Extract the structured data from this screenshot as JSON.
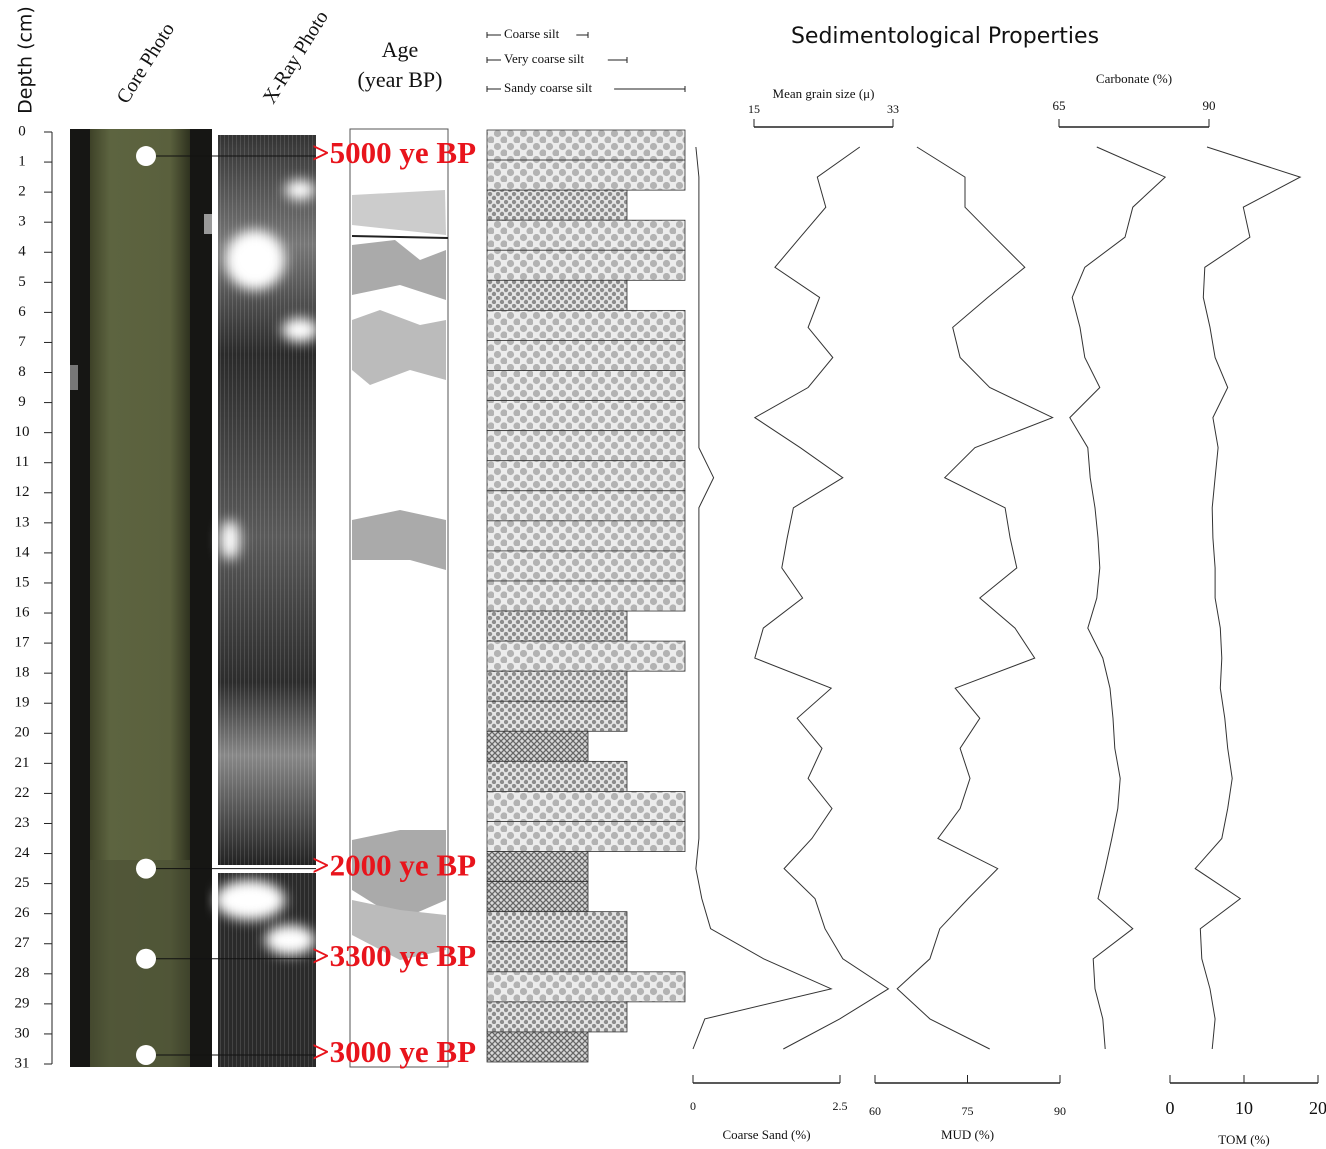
{
  "title": "Sedimentological Properties",
  "headers": {
    "core_photo": "Core Photo",
    "xray_photo": "X-Ray Photo",
    "age": [
      "Age",
      "(year BP)"
    ]
  },
  "depth_axis": {
    "label": "Depth (cm)",
    "lim": [
      0,
      31
    ],
    "ticks": [
      0,
      1,
      2,
      3,
      4,
      5,
      6,
      7,
      8,
      9,
      10,
      11,
      12,
      13,
      14,
      15,
      16,
      17,
      18,
      19,
      20,
      21,
      22,
      23,
      24,
      25,
      26,
      27,
      28,
      29,
      30,
      31
    ]
  },
  "age_labels": [
    {
      "label": ">5000 ye BP",
      "depth": 0.8
    },
    {
      "label": ">2000 ye BP",
      "depth": 24.5
    },
    {
      "label": ">3300 ye BP",
      "depth": 27.5
    },
    {
      "label": ">3000 ye BP",
      "depth": 30.7
    }
  ],
  "chart_data": [
    {
      "type": "line",
      "x_label": "Coarse Sand (%)",
      "xlim": [
        0,
        2.5
      ],
      "xticks": [
        0,
        2.5
      ],
      "color": "#333",
      "y": [
        0.5,
        1.5,
        2.5,
        3.5,
        4.5,
        5.5,
        6.5,
        7.5,
        8.5,
        9.5,
        10.5,
        11.5,
        12.5,
        13.5,
        14.5,
        15.5,
        16.5,
        17.5,
        18.5,
        19.5,
        20.5,
        21.5,
        22.5,
        23.5,
        24.5,
        25.5,
        26.5,
        27.5,
        28.5,
        29.5,
        30.5
      ],
      "values": [
        0.05,
        0.1,
        0.1,
        0.1,
        0.1,
        0.1,
        0.1,
        0.1,
        0.1,
        0.1,
        0.1,
        0.35,
        0.1,
        0.1,
        0.1,
        0.1,
        0.1,
        0.1,
        0.1,
        0.1,
        0.1,
        0.1,
        0.1,
        0.1,
        0.05,
        0.15,
        0.3,
        1.2,
        2.35,
        0.2,
        0.0
      ]
    },
    {
      "type": "line",
      "x_label": "Mean grain size (μ)",
      "xlim": [
        15,
        33
      ],
      "xticks": [
        15,
        33
      ],
      "color": "#333",
      "y": [
        0.5,
        1.5,
        2.5,
        3.5,
        4.5,
        5.5,
        6.5,
        7.5,
        8.5,
        9.5,
        10.5,
        11.5,
        12.5,
        13.5,
        14.5,
        15.5,
        16.5,
        17.5,
        18.5,
        19.5,
        20.5,
        21.5,
        22.5,
        23.5,
        24.5,
        25.5,
        26.5,
        27.5,
        28.5,
        29.5,
        30.5
      ],
      "values": [
        28.7,
        23.2,
        24.3,
        21.0,
        17.7,
        23.5,
        22.0,
        25.2,
        22.0,
        15.1,
        21.0,
        26.5,
        20.1,
        19.3,
        18.6,
        21.3,
        16.2,
        15.1,
        25.0,
        20.6,
        23.8,
        22.0,
        25.1,
        22.5,
        18.9,
        22.9,
        24.2,
        26.5,
        32.4,
        26.1,
        18.8
      ]
    },
    {
      "type": "line",
      "x_label": "MUD (%)",
      "xlim": [
        60,
        90
      ],
      "xticks": [
        60,
        75,
        90
      ],
      "color": "#333",
      "y": [
        0.5,
        1.5,
        2.5,
        3.5,
        4.5,
        5.5,
        6.5,
        7.5,
        8.5,
        9.5,
        10.5,
        11.5,
        12.5,
        13.5,
        14.5,
        15.5,
        16.5,
        17.5,
        18.5,
        19.5,
        20.5,
        21.5,
        22.5,
        23.5,
        24.5,
        25.5,
        26.5,
        27.5,
        28.5,
        29.5,
        30.5
      ],
      "values": [
        66.8,
        74.6,
        74.6,
        79.4,
        84.3,
        78.3,
        72.6,
        73.8,
        78.6,
        88.8,
        76.2,
        71.3,
        81.1,
        81.9,
        83.0,
        77.0,
        82.7,
        85.9,
        73.0,
        77.0,
        73.8,
        75.4,
        73.8,
        70.2,
        79.9,
        75.1,
        70.5,
        68.9,
        63.6,
        68.9,
        78.6
      ]
    },
    {
      "type": "line",
      "x_label": "Carbonate (%)",
      "xlim": [
        65,
        90
      ],
      "xticks": [
        65,
        90
      ],
      "color": "#333",
      "y": [
        0.5,
        1.5,
        2.5,
        3.5,
        4.5,
        5.5,
        6.5,
        7.5,
        8.5,
        9.5,
        10.5,
        11.5,
        12.5,
        13.5,
        14.5,
        15.5,
        16.5,
        17.5,
        18.5,
        19.5,
        20.5,
        21.5,
        22.5,
        23.5,
        24.5,
        25.5,
        26.5,
        27.5,
        28.5,
        29.5,
        30.5
      ],
      "values": [
        71.3,
        82.7,
        77.3,
        76.0,
        69.3,
        67.2,
        68.5,
        69.3,
        71.8,
        66.8,
        69.8,
        70.2,
        71.0,
        71.5,
        71.8,
        71.3,
        69.8,
        72.3,
        73.5,
        74.0,
        74.3,
        75.2,
        74.8,
        73.8,
        72.7,
        71.5,
        77.3,
        70.7,
        71.0,
        72.3,
        72.7
      ]
    },
    {
      "type": "line",
      "x_label": "TOM (%)",
      "xlim": [
        0,
        20
      ],
      "xticks": [
        0,
        10,
        20
      ],
      "color": "#333",
      "y": [
        0.5,
        1.5,
        2.5,
        3.5,
        4.5,
        5.5,
        6.5,
        7.5,
        8.5,
        9.5,
        10.5,
        11.5,
        12.5,
        13.5,
        14.5,
        15.5,
        16.5,
        17.5,
        18.5,
        19.5,
        20.5,
        21.5,
        22.5,
        23.5,
        24.5,
        25.5,
        26.5,
        27.5,
        28.5,
        29.5,
        30.5
      ],
      "values": [
        5.0,
        17.6,
        9.9,
        10.8,
        4.7,
        4.5,
        5.4,
        6.1,
        7.8,
        5.8,
        6.5,
        6.1,
        5.7,
        5.8,
        6.1,
        6.1,
        6.8,
        7.0,
        6.8,
        7.4,
        7.8,
        8.4,
        7.8,
        7.0,
        3.4,
        9.5,
        4.1,
        4.3,
        5.4,
        6.1,
        5.7
      ]
    },
    {
      "type": "strip",
      "legend": [
        "Coarse silt",
        "Very coarse silt",
        "Sandy coarse silt"
      ],
      "classes": [
        "Sandy coarse silt",
        "Sandy coarse silt",
        "Very coarse silt",
        "Sandy coarse silt",
        "Sandy coarse silt",
        "Very coarse silt",
        "Sandy coarse silt",
        "Sandy coarse silt",
        "Sandy coarse silt",
        "Sandy coarse silt",
        "Sandy coarse silt",
        "Sandy coarse silt",
        "Sandy coarse silt",
        "Sandy coarse silt",
        "Sandy coarse silt",
        "Sandy coarse silt",
        "Very coarse silt",
        "Sandy coarse silt",
        "Very coarse silt",
        "Very coarse silt",
        "Coarse silt",
        "Very coarse silt",
        "Sandy coarse silt",
        "Sandy coarse silt",
        "Coarse silt",
        "Coarse silt",
        "Very coarse silt",
        "Very coarse silt",
        "Sandy coarse silt",
        "Very coarse silt",
        "Coarse silt"
      ]
    }
  ]
}
